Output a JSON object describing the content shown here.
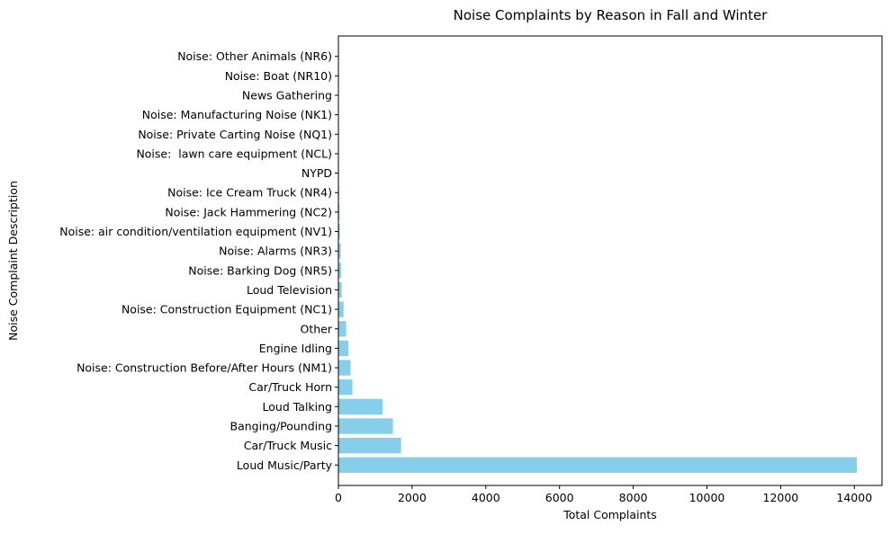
{
  "chart_data": {
    "type": "bar",
    "orientation": "horizontal",
    "title": "Noise Complaints by Reason in Fall and Winter",
    "xlabel": "Total Complaints",
    "ylabel": "Noise Complaint Description",
    "xlim": [
      0,
      14750
    ],
    "xticks": [
      0,
      2000,
      4000,
      6000,
      8000,
      10000,
      12000,
      14000
    ],
    "grid": false,
    "bar_color": "#87ceeb",
    "categories": [
      "Loud Music/Party",
      "Car/Truck Music",
      "Banging/Pounding",
      "Loud Talking",
      "Car/Truck Horn",
      "Noise: Construction Before/After Hours (NM1)",
      "Engine Idling",
      "Other",
      "Noise: Construction Equipment (NC1)",
      "Loud Television",
      "Noise: Barking Dog (NR5)",
      "Noise: Alarms (NR3)",
      "Noise: air condition/ventilation equipment (NV1)",
      "Noise: Jack Hammering (NC2)",
      "Noise: Ice Cream Truck (NR4)",
      "NYPD",
      "Noise:  lawn care equipment (NCL)",
      "Noise: Private Carting Noise (NQ1)",
      "Noise: Manufacturing Noise (NK1)",
      "News Gathering",
      "Noise: Boat (NR10)",
      "Noise: Other Animals (NR6)"
    ],
    "values": [
      14070,
      1700,
      1480,
      1200,
      380,
      330,
      270,
      210,
      140,
      90,
      70,
      60,
      40,
      30,
      20,
      12,
      8,
      6,
      5,
      3,
      2,
      1
    ]
  }
}
